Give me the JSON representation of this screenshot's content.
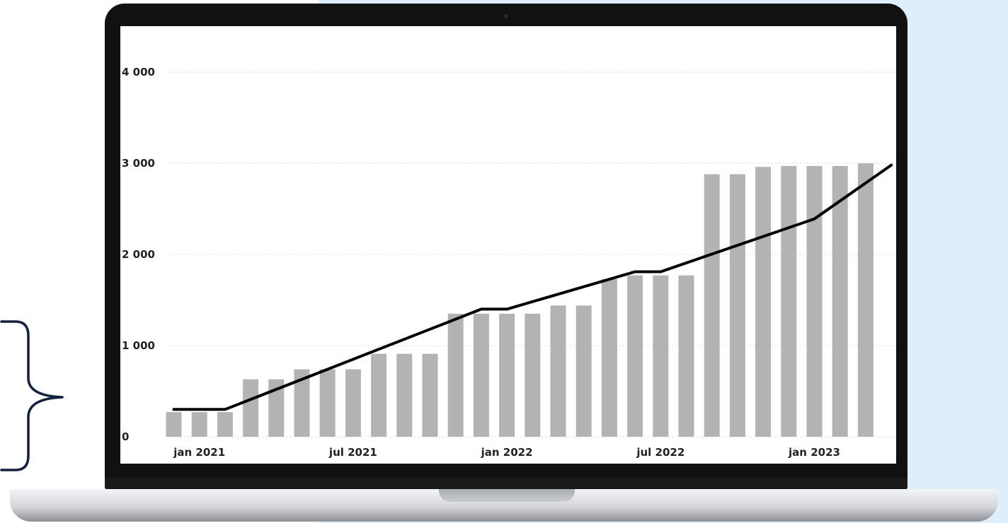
{
  "colors": {
    "background_panel": "#dfeefb",
    "bar": "#b3b3b3",
    "line": "#000000",
    "gridline": "#d4d4d4",
    "brace": "#14213d",
    "laptop_frame": "#111111"
  },
  "decor": {
    "brace_icon": "right-curly-brace",
    "device": "laptop"
  },
  "chart_data": {
    "type": "bar",
    "x_dates": [
      "2020-12",
      "2021-01",
      "2021-02",
      "2021-03",
      "2021-04",
      "2021-05",
      "2021-06",
      "2021-07",
      "2021-08",
      "2021-09",
      "2021-10",
      "2021-11",
      "2021-12",
      "2022-01",
      "2022-02",
      "2022-03",
      "2022-04",
      "2022-05",
      "2022-06",
      "2022-07",
      "2022-08",
      "2022-09",
      "2022-10",
      "2022-11",
      "2022-12",
      "2023-01",
      "2023-02",
      "2023-03"
    ],
    "series": [
      {
        "kind": "bar",
        "values": [
          270,
          270,
          270,
          630,
          630,
          740,
          740,
          740,
          910,
          910,
          910,
          1350,
          1350,
          1350,
          1350,
          1440,
          1440,
          1730,
          1770,
          1770,
          1770,
          2880,
          2880,
          2960,
          2970,
          2970,
          2970,
          3000
        ]
      },
      {
        "kind": "line",
        "points": [
          {
            "x": "2020-12",
            "y": 300
          },
          {
            "x": "2021-01",
            "y": 300
          },
          {
            "x": "2021-02",
            "y": 300
          },
          {
            "x": "2021-12",
            "y": 1400
          },
          {
            "x": "2022-01",
            "y": 1400
          },
          {
            "x": "2022-06",
            "y": 1810
          },
          {
            "x": "2022-07",
            "y": 1810
          },
          {
            "x": "2023-01",
            "y": 2390
          },
          {
            "x": "2023-04",
            "y": 2980
          }
        ]
      }
    ],
    "xtick_labels": [
      {
        "x": "2021-01",
        "label": "jan 2021"
      },
      {
        "x": "2021-07",
        "label": "jul 2021"
      },
      {
        "x": "2022-01",
        "label": "jan 2022"
      },
      {
        "x": "2022-07",
        "label": "jul 2022"
      },
      {
        "x": "2023-01",
        "label": "jan 2023"
      }
    ],
    "yticks": [
      {
        "value": 0,
        "label": "0"
      },
      {
        "value": 1000,
        "label": "1 000"
      },
      {
        "value": 2000,
        "label": "2 000"
      },
      {
        "value": 3000,
        "label": "3 000"
      },
      {
        "value": 4000,
        "label": "4 000"
      }
    ],
    "ylim": [
      0,
      4000
    ],
    "grid": "horizontal-dotted",
    "legend": "none",
    "title": "",
    "xlabel": "",
    "ylabel": ""
  }
}
